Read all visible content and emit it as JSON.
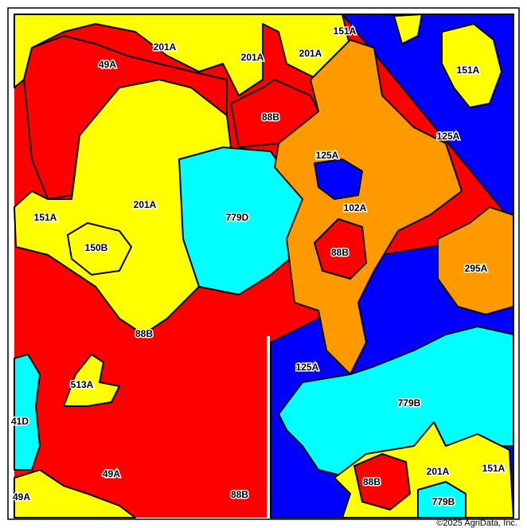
{
  "map": {
    "labels": [
      "201A",
      "49A",
      "201A",
      "201A",
      "151A",
      "151A",
      "88B",
      "125A",
      "125A",
      "201A",
      "779D",
      "102A",
      "151A",
      "150B",
      "88B",
      "295A",
      "88B",
      "125A",
      "513A",
      "779B",
      "41D",
      "49A",
      "201A",
      "151A",
      "88B",
      "49A",
      "88B",
      "779B"
    ],
    "copyright": "©2025 AgriData, Inc."
  }
}
